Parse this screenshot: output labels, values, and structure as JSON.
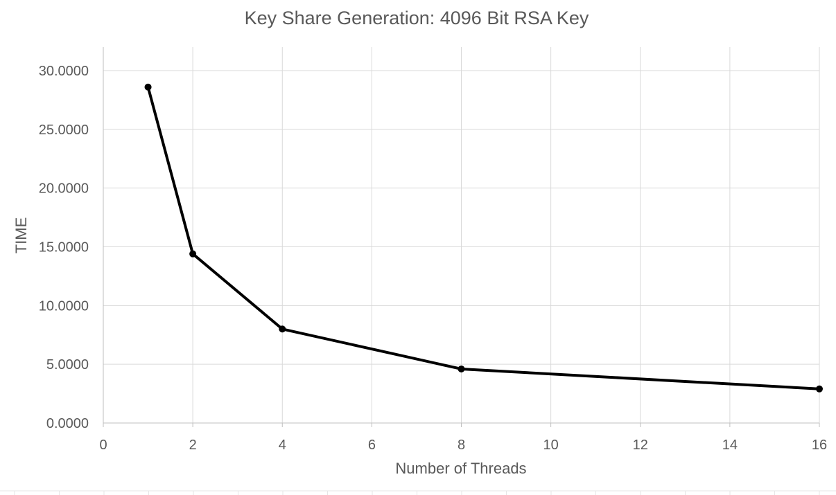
{
  "chart_data": {
    "type": "line",
    "title": "Key Share Generation: 4096 Bit RSA Key",
    "xlabel": "Number of Threads",
    "ylabel": "TIME",
    "xlim": [
      0,
      16
    ],
    "ylim": [
      0,
      30
    ],
    "x_ticks": [
      0,
      2,
      4,
      6,
      8,
      10,
      12,
      14,
      16
    ],
    "y_ticks": [
      0,
      5,
      10,
      15,
      20,
      25,
      30
    ],
    "y_tick_labels": [
      "0.0000",
      "5.0000",
      "10.0000",
      "15.0000",
      "20.0000",
      "25.0000",
      "30.0000"
    ],
    "x_tick_labels": [
      "0",
      "2",
      "4",
      "6",
      "8",
      "10",
      "12",
      "14",
      "16"
    ],
    "grid": true,
    "legend": "none",
    "series": [
      {
        "x": [
          1,
          2,
          4,
          8,
          16
        ],
        "y": [
          28.6,
          14.4,
          8.0,
          4.6,
          2.9
        ],
        "color": "#000000"
      }
    ]
  }
}
